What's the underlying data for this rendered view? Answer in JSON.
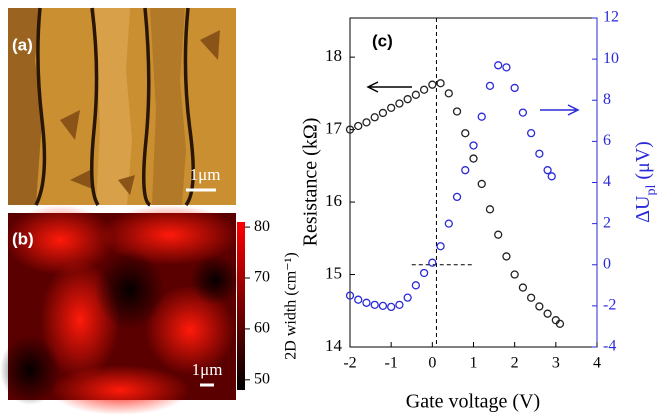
{
  "panel_a": {
    "label": "(a)",
    "scale_bar": "1μm"
  },
  "panel_b": {
    "label": "(b)",
    "scale_bar": "1μm",
    "colorbar": {
      "label": "2D width (cm⁻¹)",
      "lim": [
        48,
        81
      ],
      "ticks": [
        50,
        60,
        70,
        80
      ]
    }
  },
  "chart_data": {
    "type": "scatter",
    "panel_label": "(c)",
    "x_label": "Gate voltage (V)",
    "y_label": "Resistance (kΩ)",
    "y2_label": {
      "main": "ΔU",
      "sub": "pl",
      "unit": "(μV)"
    },
    "xlim": [
      -2,
      4
    ],
    "xticks": [
      -2,
      -1,
      0,
      1,
      2,
      3,
      4
    ],
    "ylim": [
      14,
      18.54
    ],
    "yticks": [
      14,
      15,
      16,
      17,
      18
    ],
    "y2lim": [
      -4,
      12
    ],
    "y2ticks": [
      -4,
      -2,
      0,
      2,
      4,
      6,
      8,
      10,
      12
    ],
    "series": [
      {
        "color": "#222222",
        "x": [
          -2,
          -1.8,
          -1.6,
          -1.4,
          -1.2,
          -1.0,
          -0.8,
          -0.6,
          -0.4,
          -0.2,
          0,
          0.2,
          0.4,
          0.6,
          0.8,
          1.0,
          1.2,
          1.4,
          1.6,
          1.8,
          2.0,
          2.2,
          2.4,
          2.6,
          2.8,
          3.0,
          3.1
        ],
        "values": [
          17.0,
          17.05,
          17.1,
          17.17,
          17.23,
          17.3,
          17.36,
          17.42,
          17.48,
          17.55,
          17.62,
          17.64,
          17.5,
          17.25,
          16.95,
          16.6,
          16.25,
          15.9,
          15.55,
          15.25,
          15.0,
          14.82,
          14.68,
          14.56,
          14.46,
          14.37,
          14.32
        ]
      },
      {
        "color": "#2a2ad8",
        "axis": "y2",
        "x": [
          -2,
          -1.8,
          -1.6,
          -1.4,
          -1.2,
          -1.0,
          -0.8,
          -0.6,
          -0.4,
          -0.2,
          0,
          0.2,
          0.4,
          0.6,
          0.8,
          1.0,
          1.2,
          1.4,
          1.6,
          1.8,
          2.0,
          2.2,
          2.4,
          2.6,
          2.8,
          2.9
        ],
        "values": [
          -1.5,
          -1.7,
          -1.85,
          -1.95,
          -2.0,
          -2.05,
          -1.95,
          -1.6,
          -1.0,
          -0.4,
          0.1,
          0.9,
          2.0,
          3.3,
          4.6,
          5.8,
          7.2,
          8.7,
          9.7,
          9.6,
          8.6,
          7.4,
          6.4,
          5.4,
          4.6,
          4.3
        ]
      }
    ],
    "dashed_lines": [
      {
        "axis": "x",
        "value": 0.1
      },
      {
        "axis": "y2",
        "value": 0,
        "from": -0.5,
        "to": 1.0
      }
    ]
  }
}
